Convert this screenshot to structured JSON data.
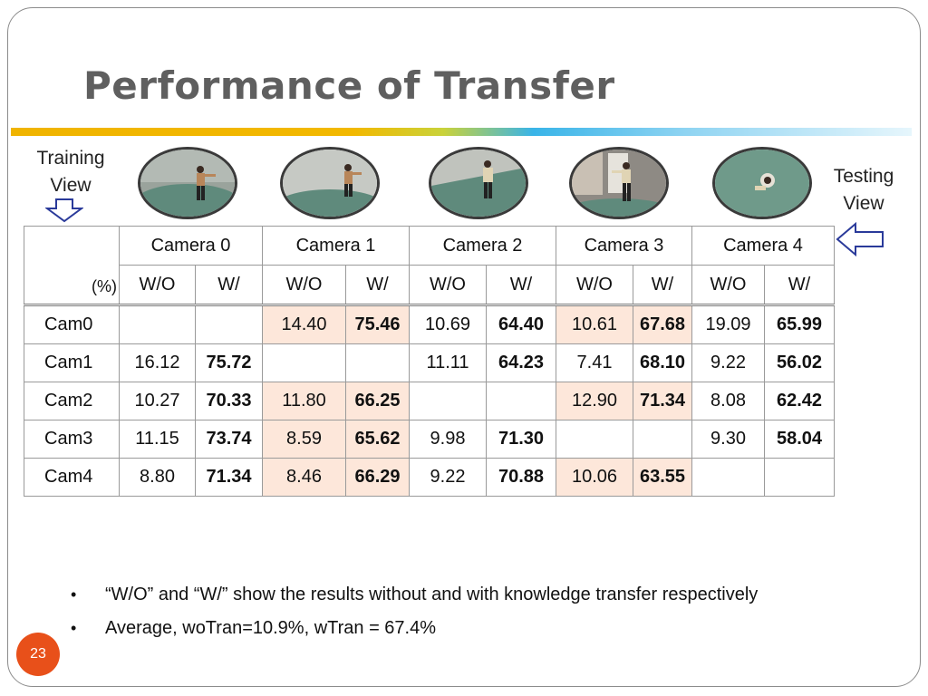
{
  "slide": {
    "title": "Performance of Transfer",
    "page_number": "23",
    "colors": {
      "title": "#5f5f5f",
      "accent_bar_start": "#f0b400",
      "accent_bar_end": "#39b4e8",
      "highlight_cell": "#fde7da",
      "page_badge": "#e8501a",
      "arrow_outline": "#2a3a9a"
    }
  },
  "labels": {
    "training_line1": "Training",
    "training_line2": "View",
    "testing_line1": "Testing",
    "testing_line2": "View"
  },
  "icons": {
    "training_arrow": "down-arrow-outline-icon",
    "testing_arrow": "left-arrow-outline-icon"
  },
  "table": {
    "corner_label": "(%)",
    "cameras": [
      "Camera 0",
      "Camera 1",
      "Camera 2",
      "Camera 3",
      "Camera 4"
    ],
    "sub_headers": [
      "W/O",
      "W/",
      "W/O",
      "W/",
      "W/O",
      "W/",
      "W/O",
      "W/",
      "W/O",
      "W/"
    ],
    "rows": [
      {
        "label": "Cam0",
        "cells": [
          "",
          "",
          "14.40",
          "75.46",
          "10.69",
          "64.40",
          "10.61",
          "67.68",
          "19.09",
          "65.99"
        ]
      },
      {
        "label": "Cam1",
        "cells": [
          "16.12",
          "75.72",
          "",
          "",
          "11.11",
          "64.23",
          "7.41",
          "68.10",
          "9.22",
          "56.02"
        ]
      },
      {
        "label": "Cam2",
        "cells": [
          "10.27",
          "70.33",
          "11.80",
          "66.25",
          "",
          "",
          "12.90",
          "71.34",
          "8.08",
          "62.42"
        ]
      },
      {
        "label": "Cam3",
        "cells": [
          "11.15",
          "73.74",
          "8.59",
          "65.62",
          "9.98",
          "71.30",
          "",
          "",
          "9.30",
          "58.04"
        ]
      },
      {
        "label": "Cam4",
        "cells": [
          "8.80",
          "71.34",
          "8.46",
          "66.29",
          "9.22",
          "70.88",
          "10.06",
          "63.55",
          "",
          ""
        ]
      }
    ]
  },
  "bullets": [
    "“W/O” and “W/” show the results without and with knowledge transfer respectively",
    "Average, woTran=10.9%, wTran = 67.4%"
  ]
}
